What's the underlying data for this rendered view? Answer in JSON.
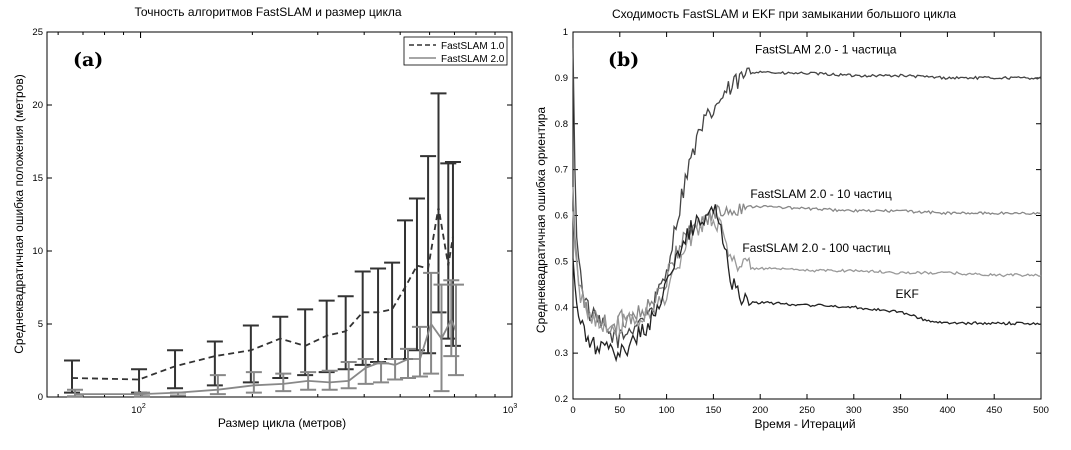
{
  "chart_data": [
    {
      "type": "line",
      "panel_label": "(a)",
      "title": "Точность алгоритмов FastSLAM и размер цикла",
      "xlabel": "Размер цикла (метров)",
      "ylabel": "Среднеквадратичная ошибка положения (метров)",
      "xscale": "log",
      "xlim": [
        56,
        1000
      ],
      "ylim": [
        0,
        25
      ],
      "x_ticks": [
        100,
        1000
      ],
      "x_tick_labels": [
        {
          "base": "10",
          "exp": "2"
        },
        {
          "base": "10",
          "exp": "3"
        }
      ],
      "y_ticks": [
        0,
        5,
        10,
        15,
        20,
        25
      ],
      "legend_position": "top-right",
      "series": [
        {
          "name": "FastSLAM 1.0",
          "color": "#333333",
          "style": "dashed",
          "x": [
            66,
            100,
            125,
            160,
            200,
            240,
            280,
            320,
            360,
            400,
            440,
            480,
            520,
            560,
            600,
            640,
            680,
            700
          ],
          "y": [
            1.3,
            1.2,
            2.1,
            2.8,
            3.2,
            4.0,
            3.5,
            4.2,
            4.5,
            5.8,
            5.8,
            6.0,
            7.5,
            9.0,
            8.8,
            13.0,
            9.0,
            11.0
          ],
          "lower": [
            0.3,
            0.3,
            0.6,
            0.8,
            1.0,
            1.3,
            1.5,
            1.7,
            1.9,
            2.2,
            2.4,
            2.6,
            2.6,
            3.2,
            3.0,
            5.8,
            4.0,
            3.5
          ],
          "upper": [
            2.5,
            1.9,
            3.2,
            3.8,
            4.9,
            5.5,
            6.0,
            6.6,
            6.9,
            8.6,
            8.8,
            9.2,
            12.1,
            13.6,
            16.5,
            20.8,
            16.0,
            16.1
          ]
        },
        {
          "name": "FastSLAM 2.0",
          "color": "#888888",
          "style": "solid",
          "x": [
            66,
            100,
            125,
            160,
            200,
            240,
            280,
            320,
            360,
            400,
            440,
            480,
            520,
            560,
            600,
            640,
            680,
            700
          ],
          "y": [
            0.2,
            0.2,
            0.3,
            0.5,
            0.8,
            0.9,
            1.1,
            1.0,
            1.1,
            2.0,
            2.4,
            2.2,
            2.6,
            2.6,
            5.0,
            4.0,
            5.3,
            4.5
          ],
          "lower": [
            0.05,
            0.05,
            0.1,
            0.2,
            0.3,
            0.4,
            0.5,
            0.5,
            0.6,
            0.9,
            1.0,
            1.2,
            1.3,
            1.4,
            1.6,
            0.4,
            2.8,
            1.5
          ],
          "upper": [
            0.5,
            0.3,
            0.3,
            1.5,
            1.7,
            1.6,
            1.7,
            1.8,
            2.4,
            2.6,
            2.3,
            2.6,
            3.3,
            4.8,
            8.5,
            7.7,
            8.0,
            7.7
          ]
        }
      ]
    },
    {
      "type": "line",
      "panel_label": "(b)",
      "title": "Сходимость FastSLAM и EKF при замыкании большого цикла",
      "xlabel": "Время - Итераций",
      "ylabel": "Среднеквадратичная ошибка ориентира",
      "xlim": [
        0,
        500
      ],
      "ylim": [
        0.2,
        1
      ],
      "x_ticks": [
        0,
        50,
        100,
        150,
        200,
        250,
        300,
        350,
        400,
        450,
        500
      ],
      "y_ticks": [
        0.2,
        0.3,
        0.4,
        0.5,
        0.6,
        0.7,
        0.8,
        0.9,
        1.0
      ],
      "y_tick_labels": [
        "0.2",
        "0.3",
        "0.4",
        "0.5",
        "0.6",
        "0.7",
        "0.8",
        "0.9",
        "1"
      ],
      "series": [
        {
          "name": "FastSLAM 2.0 - 1 частица",
          "label_at": [
            270,
            0.953
          ],
          "color": "#444444",
          "x": [
            0,
            3,
            6,
            10,
            15,
            20,
            30,
            40,
            50,
            60,
            70,
            80,
            90,
            100,
            110,
            120,
            130,
            140,
            150,
            160,
            170,
            180,
            190,
            200,
            220,
            250,
            300,
            350,
            400,
            450,
            500
          ],
          "y": [
            0.95,
            0.6,
            0.5,
            0.45,
            0.4,
            0.38,
            0.36,
            0.34,
            0.33,
            0.35,
            0.37,
            0.39,
            0.42,
            0.48,
            0.58,
            0.68,
            0.75,
            0.8,
            0.83,
            0.86,
            0.88,
            0.9,
            0.91,
            0.915,
            0.91,
            0.91,
            0.905,
            0.905,
            0.9,
            0.9,
            0.9
          ]
        },
        {
          "name": "FastSLAM 2.0 - 10 частиц",
          "label_at": [
            265,
            0.638
          ],
          "color": "#888888",
          "x": [
            0,
            3,
            6,
            10,
            15,
            20,
            30,
            40,
            50,
            60,
            70,
            80,
            90,
            100,
            110,
            120,
            130,
            140,
            150,
            160,
            170,
            180,
            190,
            200,
            250,
            300,
            350,
            400,
            450,
            500
          ],
          "y": [
            0.65,
            0.52,
            0.45,
            0.42,
            0.4,
            0.38,
            0.37,
            0.36,
            0.37,
            0.38,
            0.39,
            0.4,
            0.42,
            0.46,
            0.52,
            0.56,
            0.58,
            0.59,
            0.6,
            0.61,
            0.615,
            0.62,
            0.62,
            0.62,
            0.615,
            0.61,
            0.61,
            0.605,
            0.605,
            0.605
          ]
        },
        {
          "name": "FastSLAM 2.0 - 100 частиц",
          "label_at": [
            260,
            0.52
          ],
          "color": "#999999",
          "x": [
            0,
            3,
            6,
            10,
            15,
            20,
            30,
            40,
            50,
            60,
            70,
            80,
            90,
            100,
            110,
            120,
            130,
            140,
            150,
            160,
            170,
            180,
            190,
            200,
            250,
            300,
            350,
            400,
            450,
            500
          ],
          "y": [
            0.6,
            0.5,
            0.44,
            0.41,
            0.39,
            0.38,
            0.37,
            0.36,
            0.36,
            0.37,
            0.37,
            0.38,
            0.4,
            0.43,
            0.48,
            0.53,
            0.57,
            0.59,
            0.6,
            0.56,
            0.51,
            0.49,
            0.485,
            0.485,
            0.48,
            0.48,
            0.475,
            0.475,
            0.47,
            0.47
          ]
        },
        {
          "name": "EKF",
          "label_at": [
            357,
            0.42
          ],
          "color": "#222222",
          "x": [
            0,
            3,
            6,
            10,
            15,
            20,
            30,
            40,
            50,
            60,
            70,
            80,
            90,
            100,
            110,
            120,
            130,
            140,
            150,
            160,
            170,
            180,
            190,
            200,
            250,
            300,
            350,
            380,
            400,
            450,
            500
          ],
          "y": [
            0.5,
            0.42,
            0.38,
            0.35,
            0.33,
            0.32,
            0.31,
            0.3,
            0.3,
            0.32,
            0.34,
            0.36,
            0.4,
            0.45,
            0.5,
            0.55,
            0.58,
            0.6,
            0.62,
            0.55,
            0.46,
            0.42,
            0.41,
            0.41,
            0.405,
            0.4,
            0.39,
            0.37,
            0.365,
            0.365,
            0.365
          ]
        }
      ]
    }
  ]
}
